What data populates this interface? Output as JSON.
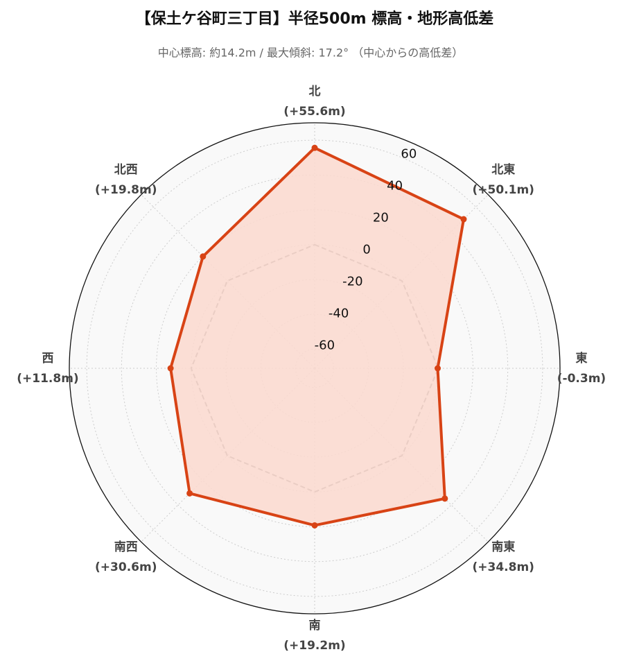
{
  "chart_data": {
    "type": "radar",
    "title": "【保土ケ谷町三丁目】半径500m 標高・地形高低差",
    "subtitle": "中心標高: 約14.2m / 最大傾斜: 17.2° （中心からの高低差）",
    "categories": [
      "北",
      "北東",
      "東",
      "南東",
      "南",
      "南西",
      "西",
      "北西"
    ],
    "values": [
      55.6,
      50.1,
      -0.3,
      34.8,
      19.2,
      30.6,
      11.8,
      19.8
    ],
    "value_labels": [
      "(+55.6m)",
      "(+50.1m)",
      "(-0.3m)",
      "(+34.8m)",
      "(+19.2m)",
      "(+30.6m)",
      "(+11.8m)",
      "(+19.8m)"
    ],
    "color": "#d84315",
    "fill_color": "#fbd9cf",
    "reference_line": 0,
    "reference_color": "#888888",
    "ylim": [
      -71,
      70
    ],
    "yticks": [
      -60,
      -40,
      -20,
      0,
      20,
      40,
      60
    ],
    "grid": true
  }
}
